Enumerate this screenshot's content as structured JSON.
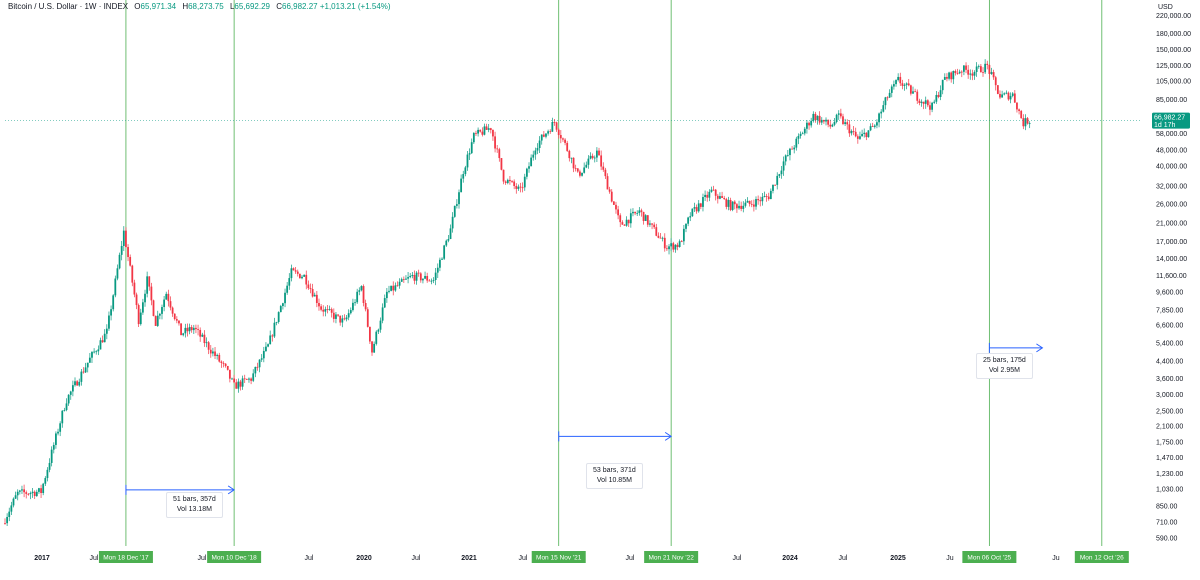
{
  "header": {
    "symbol": "Bitcoin / U.S. Dollar · 1W · INDEX",
    "open_label": "O",
    "open": "65,971.34",
    "high_label": "H",
    "high": "68,273.75",
    "low_label": "L",
    "low": "65,692.29",
    "close_label": "C",
    "close": "66,982.27",
    "change": "+1,013.21 (+1.54%)"
  },
  "price_axis": {
    "currency": "USD",
    "ticks": [
      "220,000.00",
      "180,000.00",
      "150,000.00",
      "125,000.00",
      "105,000.00",
      "85,000.00",
      "70,000.00",
      "58,000.00",
      "48,000.00",
      "40,000.00",
      "32,000.00",
      "26,000.00",
      "21,000.00",
      "17,000.00",
      "14,000.00",
      "11,600.00",
      "9,600.00",
      "7,850.00",
      "6,600.00",
      "5,400.00",
      "4,400.00",
      "3,600.00",
      "3,000.00",
      "2,500.00",
      "2,100.00",
      "1,750.00",
      "1,470.00",
      "1,230.00",
      "1,030.00",
      "850.00",
      "710.00",
      "590.00"
    ],
    "last_price": "66,982.27",
    "countdown": "1d 17h"
  },
  "time_axis": {
    "labels": [
      "2017",
      "Jul",
      "Jul",
      "Jul",
      "2020",
      "Jul",
      "2021",
      "Jul",
      "Jul",
      "Jul",
      "2024",
      "Jul",
      "2025",
      "Ju",
      "26",
      "Ju",
      "27"
    ],
    "markers": [
      "Mon 18 Dec '17",
      "Mon 10 Dec '18",
      "Mon 15 Nov '21",
      "Mon 21 Nov '22",
      "Mon 06 Oct '25",
      "Mon 12 Oct '26"
    ]
  },
  "measurements": [
    {
      "bars": "51 bars, 357d",
      "vol": "Vol 13.18M"
    },
    {
      "bars": "53 bars, 371d",
      "vol": "Vol 10.85M"
    },
    {
      "bars": "25 bars, 175d",
      "vol": "Vol 2.95M"
    }
  ],
  "colors": {
    "up": "#089981",
    "down": "#f23645",
    "marker": "#4caf50",
    "measure": "#2962ff",
    "price_line": "#089981"
  },
  "chart_data": {
    "type": "candlestick",
    "title": "Bitcoin / U.S. Dollar · 1W · INDEX",
    "scale": "log",
    "ylabel": "USD",
    "ylim": [
      540,
      240000
    ],
    "xlim": [
      "2016-11-14",
      "2027-02-15"
    ],
    "grid": false,
    "anchors": [
      [
        "2016-11-14",
        700
      ],
      [
        "2017-01-01",
        980
      ],
      [
        "2017-03-20",
        1000
      ],
      [
        "2017-06-10",
        2800
      ],
      [
        "2017-08-28",
        4500
      ],
      [
        "2017-10-23",
        6100
      ],
      [
        "2017-12-18",
        19000
      ],
      [
        "2018-02-05",
        7000
      ],
      [
        "2018-03-05",
        11000
      ],
      [
        "2018-04-02",
        6800
      ],
      [
        "2018-05-07",
        9500
      ],
      [
        "2018-06-25",
        6000
      ],
      [
        "2018-08-06",
        6400
      ],
      [
        "2018-11-19",
        4000
      ],
      [
        "2018-12-17",
        3300
      ],
      [
        "2019-02-11",
        3600
      ],
      [
        "2019-04-08",
        5200
      ],
      [
        "2019-06-24",
        12000
      ],
      [
        "2019-08-05",
        11500
      ],
      [
        "2019-09-30",
        8000
      ],
      [
        "2019-12-16",
        6800
      ],
      [
        "2020-02-10",
        10200
      ],
      [
        "2020-03-16",
        4900
      ],
      [
        "2020-05-04",
        9500
      ],
      [
        "2020-07-27",
        11500
      ],
      [
        "2020-10-05",
        11000
      ],
      [
        "2020-11-30",
        19500
      ],
      [
        "2021-01-11",
        38000
      ],
      [
        "2021-02-15",
        56000
      ],
      [
        "2021-04-12",
        62000
      ],
      [
        "2021-05-24",
        35000
      ],
      [
        "2021-07-19",
        30000
      ],
      [
        "2021-09-06",
        50000
      ],
      [
        "2021-11-08",
        66000
      ],
      [
        "2021-12-27",
        46000
      ],
      [
        "2022-01-24",
        36000
      ],
      [
        "2022-03-28",
        47000
      ],
      [
        "2022-06-13",
        20500
      ],
      [
        "2022-08-15",
        24000
      ],
      [
        "2022-11-14",
        16000
      ],
      [
        "2022-12-26",
        16500
      ],
      [
        "2023-01-30",
        23000
      ],
      [
        "2023-04-10",
        30000
      ],
      [
        "2023-06-12",
        25500
      ],
      [
        "2023-08-14",
        26000
      ],
      [
        "2023-10-16",
        28500
      ],
      [
        "2023-12-04",
        42000
      ],
      [
        "2024-03-11",
        71000
      ],
      [
        "2024-05-06",
        63000
      ],
      [
        "2024-06-03",
        70000
      ],
      [
        "2024-08-05",
        54000
      ],
      [
        "2024-09-30",
        63000
      ],
      [
        "2024-11-11",
        88000
      ],
      [
        "2024-12-16",
        106000
      ],
      [
        "2025-02-24",
        86000
      ],
      [
        "2025-04-07",
        78000
      ],
      [
        "2025-05-19",
        108000
      ],
      [
        "2025-07-14",
        120000
      ],
      [
        "2025-08-18",
        116000
      ],
      [
        "2025-10-06",
        124000
      ],
      [
        "2025-11-17",
        88000
      ],
      [
        "2025-12-29",
        90000
      ],
      [
        "2026-02-02",
        65000
      ],
      [
        "2026-02-16",
        66982
      ]
    ],
    "time_markers": [
      "2017-12-18",
      "2018-12-10",
      "2021-11-15",
      "2022-11-21",
      "2025-10-06",
      "2026-10-12"
    ],
    "measurements": [
      {
        "from": "2017-12-18",
        "to": "2018-12-10",
        "price": 1020
      },
      {
        "from": "2021-11-15",
        "to": "2022-11-21",
        "price": 1870
      },
      {
        "from": "2025-10-06",
        "to": "2026-03-30",
        "price": 5100
      }
    ],
    "last_price": 66982.27
  }
}
